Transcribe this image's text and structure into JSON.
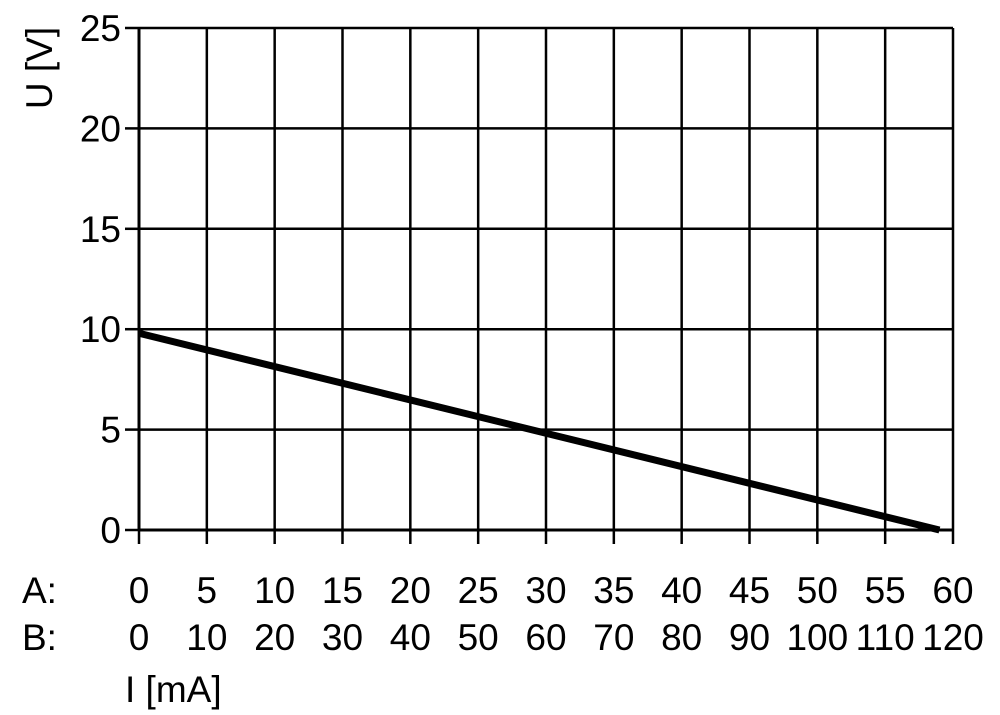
{
  "chart_data": {
    "type": "line",
    "ylabel": "U [V]",
    "xlabel": "I [mA]",
    "ylim": [
      0,
      25
    ],
    "yticks": [
      "0",
      "5",
      "10",
      "15",
      "20",
      "25"
    ],
    "xlim": [
      0,
      60
    ],
    "grid": true,
    "x_scales": [
      {
        "label": "A:",
        "ticks": [
          "0",
          "5",
          "10",
          "15",
          "20",
          "25",
          "30",
          "35",
          "40",
          "45",
          "50",
          "55",
          "60"
        ]
      },
      {
        "label": "B:",
        "ticks": [
          "0",
          "10",
          "20",
          "30",
          "40",
          "50",
          "60",
          "70",
          "80",
          "90",
          "100",
          "110",
          "120"
        ]
      }
    ],
    "series": [
      {
        "x": [
          0,
          59
        ],
        "y": [
          9.8,
          0
        ],
        "color": "#000000"
      }
    ]
  }
}
